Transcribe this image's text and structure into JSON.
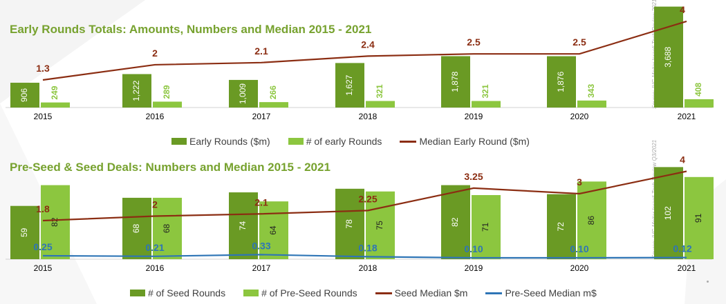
{
  "chart_data": [
    {
      "type": "bar",
      "title": "Early Rounds Totals: Amounts, Numbers and Median 2015 - 2021",
      "source": "Source: IVC-Meitar Israeli Tech Review 2021",
      "categories": [
        "2015",
        "2016",
        "2017",
        "2018",
        "2019",
        "2020",
        "2021"
      ],
      "series": [
        {
          "name": "Early Rounds ($m)",
          "kind": "bar",
          "color": "#6a9a24",
          "values": [
            906,
            1222,
            1009,
            1627,
            1878,
            1876,
            3688
          ],
          "labels": [
            "906",
            "1,222",
            "1,009",
            "1,627",
            "1,878",
            "1,876",
            "3,688"
          ]
        },
        {
          "name": "# of early Rounds",
          "kind": "bar",
          "color": "#8cc63f",
          "values": [
            249,
            289,
            266,
            321,
            321,
            343,
            408
          ],
          "labels": [
            "249",
            "289",
            "266",
            "321",
            "321",
            "343",
            "408"
          ]
        },
        {
          "name": "Median Early Round ($m)",
          "kind": "line",
          "color": "#8b2d12",
          "values": [
            1.3,
            2,
            2.1,
            2.4,
            2.5,
            2.5,
            4
          ],
          "labels": [
            "1.3",
            "2",
            "2.1",
            "2.4",
            "2.5",
            "2.5",
            "4"
          ]
        }
      ]
    },
    {
      "type": "bar",
      "title": "Pre-Seed & Seed Deals: Numbers and Median 2015 - 2021",
      "source": "Source: IVC-Meitar Israeli Tech Review Q3/2021",
      "categories": [
        "2015",
        "2016",
        "2017",
        "2018",
        "2019",
        "2020",
        "2021"
      ],
      "series": [
        {
          "name": "# of Seed Rounds",
          "kind": "bar",
          "color": "#6a9a24",
          "values": [
            59,
            68,
            74,
            78,
            82,
            72,
            102
          ],
          "labels": [
            "59",
            "68",
            "74",
            "78",
            "82",
            "72",
            "102"
          ]
        },
        {
          "name": "# of Pre-Seed Rounds",
          "kind": "bar",
          "color": "#8cc63f",
          "values": [
            82,
            68,
            64,
            75,
            71,
            86,
            91
          ],
          "labels": [
            "82",
            "68",
            "64",
            "75",
            "71",
            "86",
            "91"
          ]
        },
        {
          "name": "Seed Median $m",
          "kind": "line",
          "color": "#8b2d12",
          "values": [
            1.8,
            2,
            2.1,
            2.25,
            3.25,
            3,
            4
          ],
          "labels": [
            "1.8",
            "2",
            "2.1",
            "2.25",
            "3.25",
            "3",
            "4"
          ]
        },
        {
          "name": "Pre-Seed Median m$",
          "kind": "line",
          "color": "#2e75b6",
          "values": [
            0.25,
            0.21,
            0.33,
            0.18,
            0.1,
            0.1,
            0.12
          ],
          "labels": [
            "0.25",
            "0.21",
            "0.33",
            "0.18",
            "0.10",
            "0.10",
            "0.12"
          ]
        }
      ]
    }
  ]
}
